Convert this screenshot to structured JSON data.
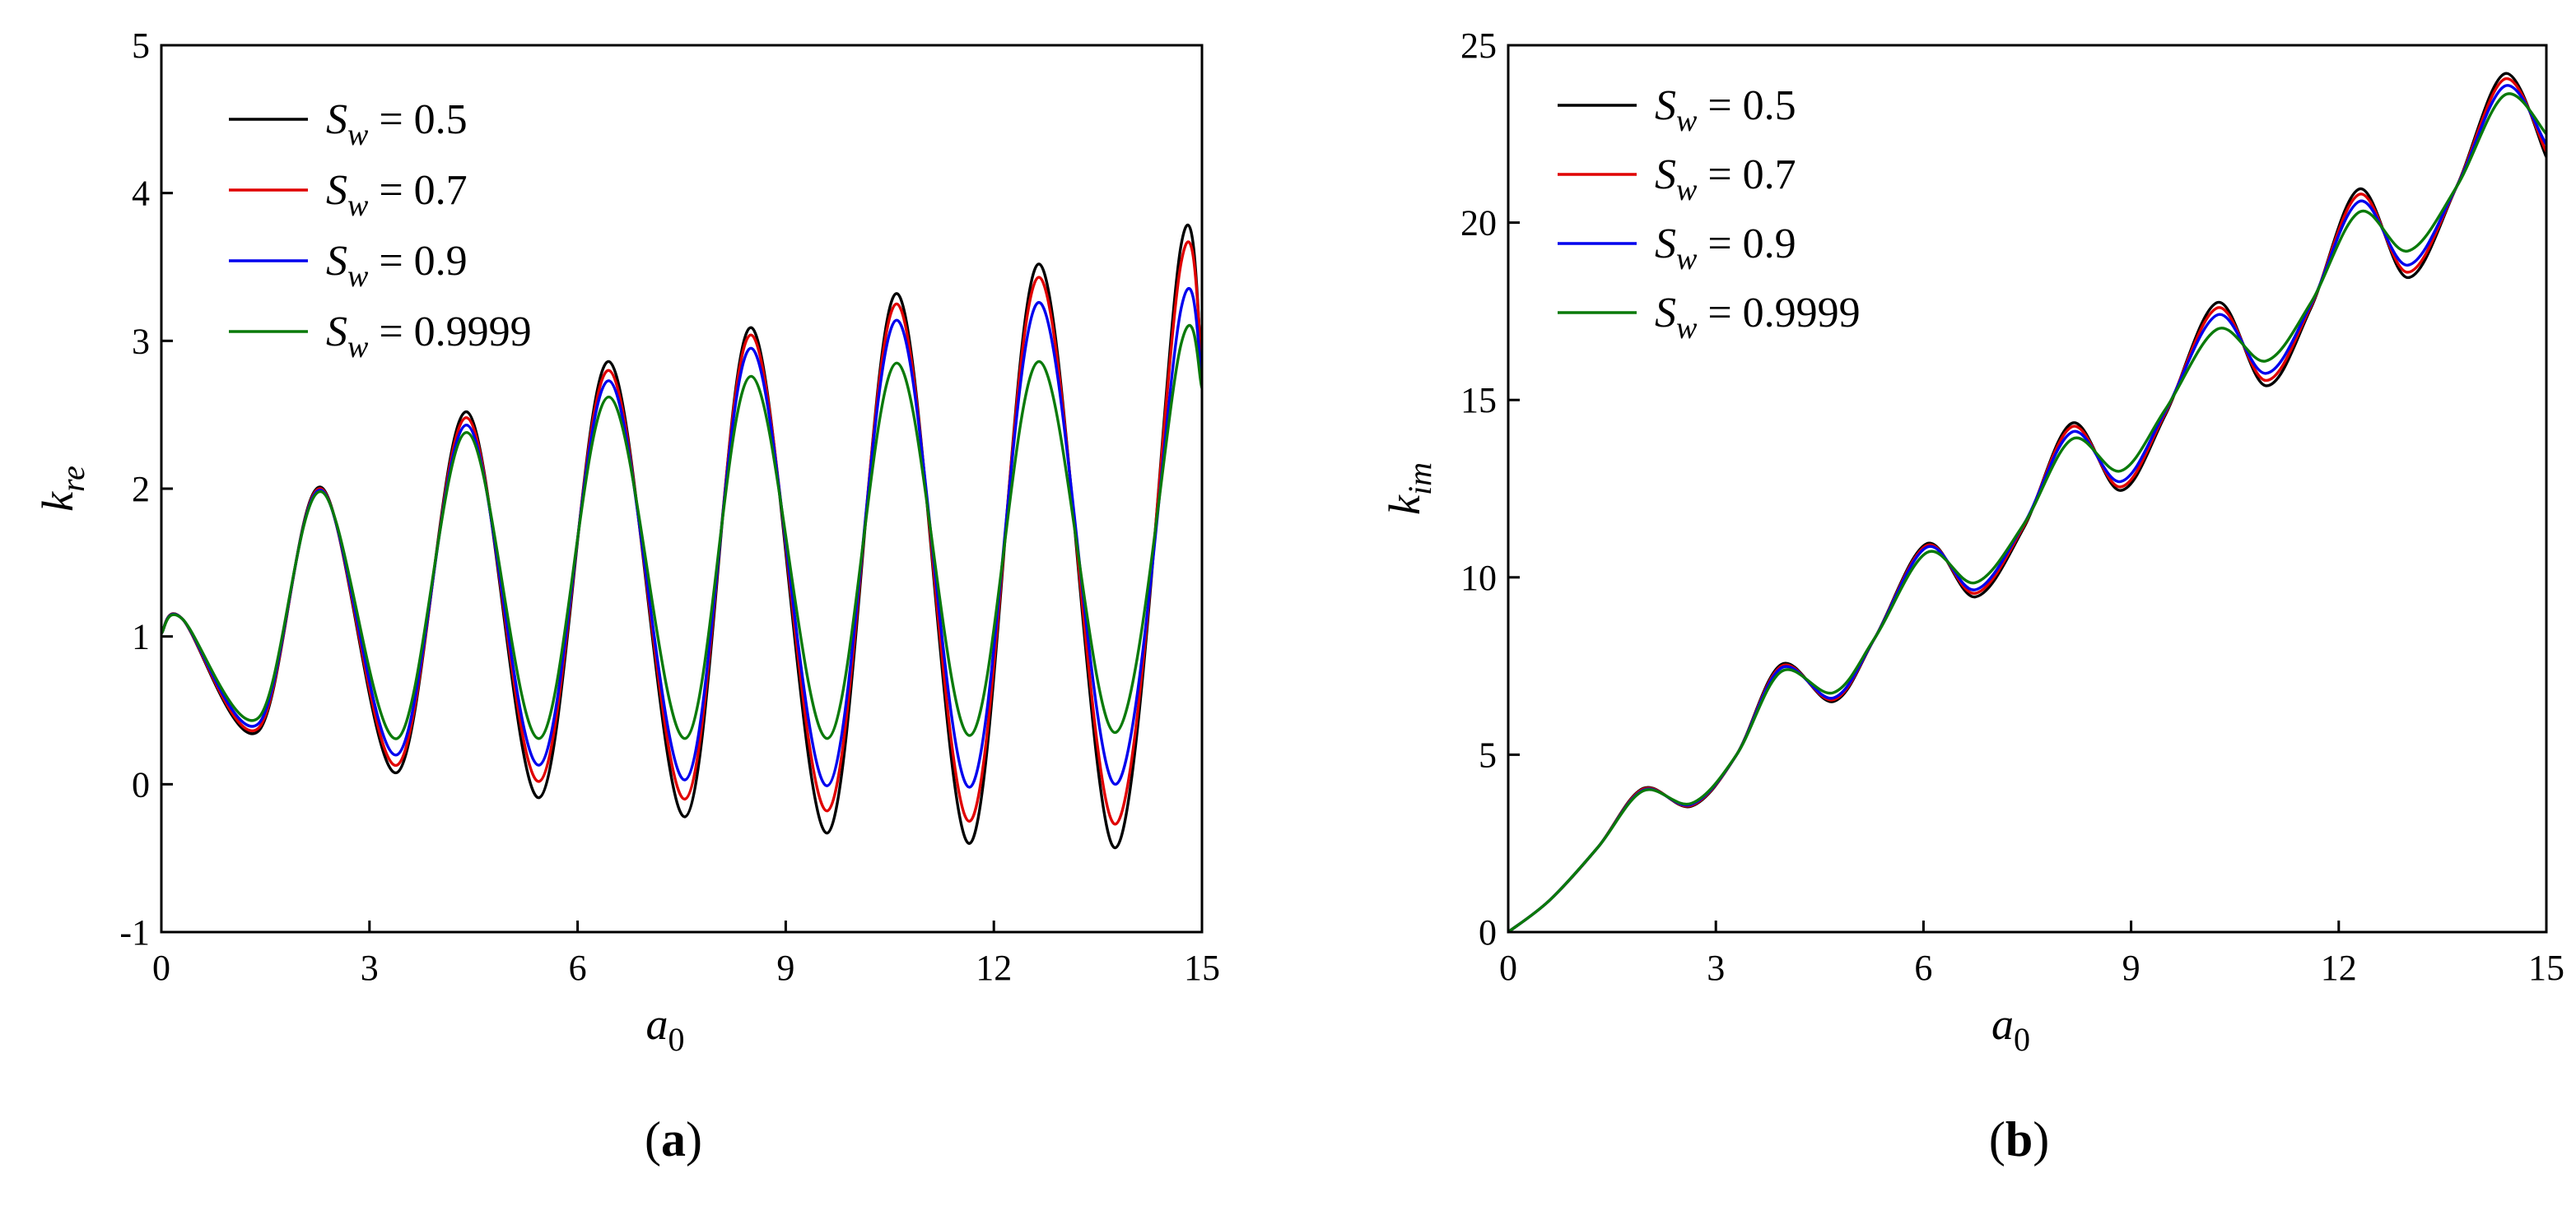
{
  "chart_data": [
    {
      "type": "line",
      "panel_label": "a",
      "xlabel": "a0",
      "ylabel": "kre",
      "xlim": [
        0,
        15
      ],
      "ylim": [
        -1,
        5
      ],
      "xticks": [
        "0",
        "3",
        "6",
        "9",
        "12",
        "15"
      ],
      "yticks": [
        "-1",
        "0",
        "1",
        "2",
        "3",
        "4",
        "5"
      ],
      "grid": false,
      "legend_position": "top-left",
      "series": [
        {
          "name": "Sw = 0.5",
          "symbol": "S",
          "subscript": "w",
          "value": " = 0.5",
          "color": "#000000",
          "x": [
            0,
            0.3,
            1.4,
            2.3,
            3.4,
            4.4,
            5.45,
            6.45,
            7.55,
            8.5,
            9.6,
            10.6,
            11.65,
            12.65,
            13.75,
            14.7,
            15
          ],
          "y": [
            1.02,
            1.12,
            0.36,
            2.01,
            0.08,
            2.52,
            -0.09,
            2.86,
            -0.22,
            3.09,
            -0.33,
            3.32,
            -0.4,
            3.52,
            -0.43,
            3.65,
            2.8
          ]
        },
        {
          "name": "Sw = 0.7",
          "symbol": "S",
          "subscript": "w",
          "value": " = 0.7",
          "color": "#e00000",
          "x": [
            0,
            0.3,
            1.4,
            2.3,
            3.4,
            4.4,
            5.45,
            6.45,
            7.55,
            8.5,
            9.6,
            10.6,
            11.65,
            12.65,
            13.75,
            14.7,
            15
          ],
          "y": [
            1.02,
            1.12,
            0.38,
            2.0,
            0.13,
            2.48,
            0.02,
            2.8,
            -0.1,
            3.04,
            -0.18,
            3.25,
            -0.25,
            3.43,
            -0.27,
            3.53,
            2.85
          ]
        },
        {
          "name": "Sw = 0.9",
          "symbol": "S",
          "subscript": "w",
          "value": " = 0.9",
          "color": "#0000ee",
          "x": [
            0,
            0.3,
            1.4,
            2.3,
            3.4,
            4.4,
            5.45,
            6.45,
            7.55,
            8.5,
            9.6,
            10.6,
            11.65,
            12.65,
            13.75,
            14.7,
            15
          ],
          "y": [
            1.02,
            1.12,
            0.41,
            1.99,
            0.2,
            2.43,
            0.13,
            2.73,
            0.03,
            2.95,
            -0.01,
            3.14,
            -0.02,
            3.26,
            0.0,
            3.22,
            2.75
          ]
        },
        {
          "name": "Sw = 0.9999",
          "symbol": "S",
          "subscript": "w",
          "value": " = 0.9999",
          "color": "#0a7a0a",
          "x": [
            0,
            0.3,
            1.4,
            2.3,
            3.4,
            4.4,
            5.45,
            6.45,
            7.55,
            8.5,
            9.6,
            10.6,
            11.65,
            12.65,
            13.75,
            14.7,
            15
          ],
          "y": [
            1.02,
            1.12,
            0.45,
            1.98,
            0.31,
            2.38,
            0.31,
            2.62,
            0.31,
            2.76,
            0.31,
            2.85,
            0.33,
            2.86,
            0.35,
            2.98,
            2.68
          ]
        }
      ]
    },
    {
      "type": "line",
      "panel_label": "b",
      "xlabel": "a0",
      "ylabel": "kim",
      "xlim": [
        0,
        15
      ],
      "ylim": [
        0,
        25
      ],
      "xticks": [
        "0",
        "3",
        "6",
        "9",
        "12",
        "15"
      ],
      "yticks": [
        "0",
        "5",
        "10",
        "15",
        "20",
        "25"
      ],
      "grid": false,
      "legend_position": "top-left",
      "series": [
        {
          "name": "Sw = 0.5",
          "symbol": "S",
          "subscript": "w",
          "value": " = 0.5",
          "color": "#000000",
          "x": [
            0,
            0.6,
            1.3,
            1.95,
            2.65,
            3.3,
            3.95,
            4.7,
            5.3,
            6.05,
            6.75,
            7.45,
            8.15,
            8.85,
            9.5,
            10.25,
            10.95,
            11.6,
            12.3,
            13.0,
            13.7,
            14.4,
            15
          ],
          "y": [
            0,
            0.9,
            2.4,
            4.05,
            3.55,
            5.0,
            7.55,
            6.5,
            8.3,
            10.95,
            9.45,
            11.4,
            14.35,
            12.45,
            14.6,
            17.75,
            15.4,
            17.6,
            20.95,
            18.45,
            21.0,
            24.2,
            21.85
          ]
        },
        {
          "name": "Sw = 0.7",
          "symbol": "S",
          "subscript": "w",
          "value": " = 0.7",
          "color": "#e00000",
          "x": [
            0,
            0.6,
            1.3,
            1.95,
            2.65,
            3.3,
            3.95,
            4.7,
            5.3,
            6.05,
            6.75,
            7.45,
            8.15,
            8.85,
            9.5,
            10.25,
            10.95,
            11.6,
            12.3,
            13.0,
            13.7,
            14.4,
            15
          ],
          "y": [
            0,
            0.9,
            2.4,
            4.03,
            3.57,
            5.0,
            7.5,
            6.55,
            8.3,
            10.9,
            9.55,
            11.45,
            14.25,
            12.55,
            14.65,
            17.6,
            15.55,
            17.65,
            20.8,
            18.6,
            21.0,
            24.05,
            22.0
          ]
        },
        {
          "name": "Sw = 0.9",
          "symbol": "S",
          "subscript": "w",
          "value": " = 0.9",
          "color": "#0000ee",
          "x": [
            0,
            0.6,
            1.3,
            1.95,
            2.65,
            3.3,
            3.95,
            4.7,
            5.3,
            6.05,
            6.75,
            7.45,
            8.15,
            8.85,
            9.5,
            10.25,
            10.95,
            11.6,
            12.3,
            13.0,
            13.7,
            14.4,
            15
          ],
          "y": [
            0,
            0.9,
            2.4,
            4.0,
            3.6,
            5.0,
            7.45,
            6.6,
            8.3,
            10.85,
            9.65,
            11.5,
            14.1,
            12.7,
            14.7,
            17.4,
            15.75,
            17.7,
            20.6,
            18.8,
            21.0,
            23.85,
            22.2
          ]
        },
        {
          "name": "Sw = 0.9999",
          "symbol": "S",
          "subscript": "w",
          "value": " = 0.9999",
          "color": "#0a7a0a",
          "x": [
            0,
            0.6,
            1.3,
            1.95,
            2.65,
            3.3,
            3.95,
            4.7,
            5.3,
            6.05,
            6.75,
            7.45,
            8.15,
            8.85,
            9.5,
            10.25,
            10.95,
            11.6,
            12.3,
            13.0,
            13.7,
            14.4,
            15
          ],
          "y": [
            0,
            0.9,
            2.4,
            3.98,
            3.63,
            5.0,
            7.35,
            6.75,
            8.3,
            10.7,
            9.85,
            11.5,
            13.9,
            13.0,
            14.75,
            17.0,
            16.1,
            17.75,
            20.3,
            19.2,
            21.0,
            23.6,
            22.5
          ]
        }
      ]
    }
  ]
}
